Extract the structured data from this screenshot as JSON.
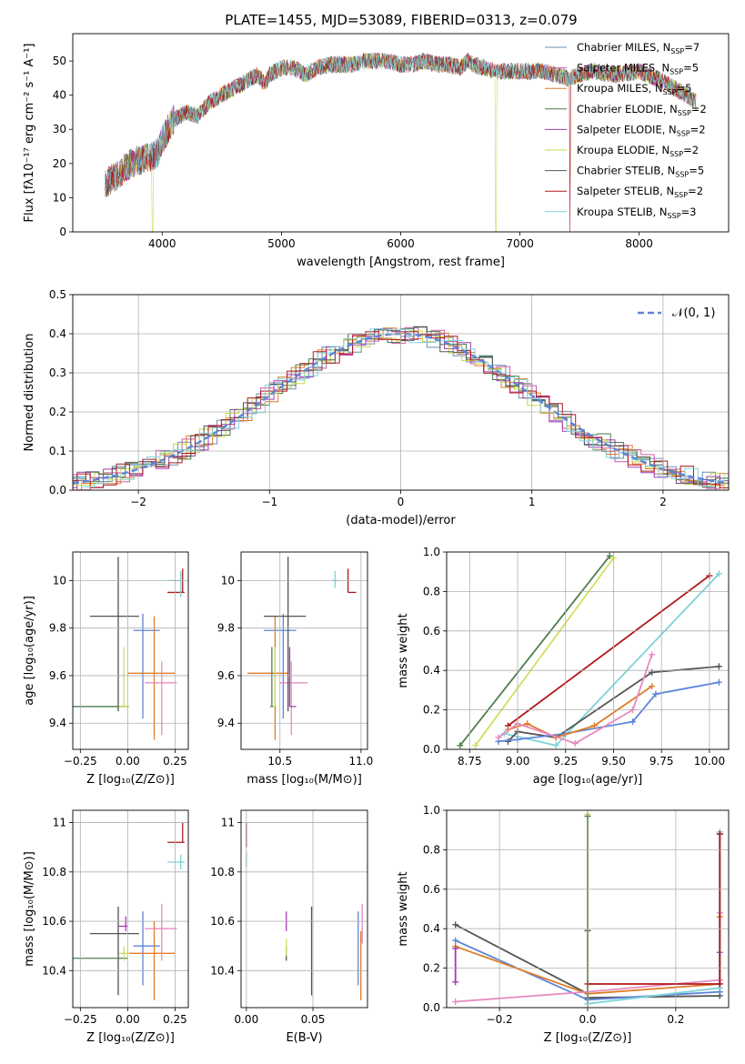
{
  "title": "PLATE=1455, MJD=53089, FIBERID=0313, z=0.079",
  "colors": {
    "chabrier_miles": "#6a8fb2",
    "salpeter_miles": "#d15aa8",
    "kroupa_miles": "#e07b28",
    "chabrier_elodie": "#4c7a4c",
    "salpeter_elodie": "#a23bb0",
    "kroupa_elodie": "#c8d84a",
    "chabrier_stelib": "#555555",
    "salpeter_stelib": "#b0181c",
    "kroupa_stelib": "#7fd3d9",
    "cb_blue": "#5b84d8",
    "cb_orange": "#e07b28",
    "cb_pink": "#e68bc0",
    "cb_green": "#4f7f4f",
    "cb_yellow": "#cfe060",
    "cb_gray": "#555555",
    "cb_red": "#b0181c",
    "cb_cyan": "#7fd3d9",
    "cb_purple": "#a23bb0",
    "normal_curve": "#5b84d8"
  },
  "chart_data": [
    {
      "id": "spectrum",
      "type": "line",
      "title": "PLATE=1455, MJD=53089, FIBERID=0313, z=0.079",
      "xlabel": "wavelength [Angstrom, rest frame]",
      "ylabel": "Flux [fλ10⁻¹⁷ erg cm⁻² s⁻¹ A⁻¹]",
      "xlim": [
        3250,
        8750
      ],
      "ylim": [
        0,
        58
      ],
      "xticks": [
        4000,
        5000,
        6000,
        7000,
        8000
      ],
      "yticks": [
        0,
        10,
        20,
        30,
        40,
        50
      ],
      "grid": false,
      "legend_position": "upper right",
      "spectrum_anchor": [
        [
          3520,
          14
        ],
        [
          3600,
          16
        ],
        [
          3700,
          19
        ],
        [
          3800,
          21
        ],
        [
          3900,
          22
        ],
        [
          3960,
          23
        ],
        [
          4000,
          27
        ],
        [
          4100,
          33
        ],
        [
          4200,
          35
        ],
        [
          4300,
          34
        ],
        [
          4400,
          38
        ],
        [
          4500,
          40
        ],
        [
          4600,
          42
        ],
        [
          4700,
          44
        ],
        [
          4800,
          46
        ],
        [
          4861,
          43
        ],
        [
          4900,
          46
        ],
        [
          5000,
          48
        ],
        [
          5100,
          48
        ],
        [
          5200,
          46
        ],
        [
          5300,
          48
        ],
        [
          5400,
          49
        ],
        [
          5500,
          49
        ],
        [
          5600,
          49
        ],
        [
          5700,
          50
        ],
        [
          5800,
          50
        ],
        [
          5900,
          50
        ],
        [
          6000,
          49
        ],
        [
          6100,
          49
        ],
        [
          6200,
          50
        ],
        [
          6300,
          49
        ],
        [
          6400,
          49
        ],
        [
          6500,
          48
        ],
        [
          6563,
          50
        ],
        [
          6600,
          49
        ],
        [
          6700,
          48
        ],
        [
          6800,
          47
        ],
        [
          6900,
          47
        ],
        [
          7000,
          47
        ],
        [
          7100,
          47
        ],
        [
          7200,
          47
        ],
        [
          7300,
          46
        ],
        [
          7400,
          45
        ],
        [
          7600,
          47
        ],
        [
          7800,
          46
        ],
        [
          8000,
          47
        ],
        [
          8200,
          44
        ],
        [
          8400,
          40
        ],
        [
          8480,
          38
        ]
      ],
      "series": [
        {
          "name": "Chabrier MILES, N",
          "sub": "SSP",
          "suffix": "=7",
          "color_key": "chabrier_miles"
        },
        {
          "name": "Salpeter MILES, N",
          "sub": "SSP",
          "suffix": "=5",
          "color_key": "salpeter_miles"
        },
        {
          "name": "Kroupa MILES, N",
          "sub": "SSP",
          "suffix": "=5",
          "color_key": "kroupa_miles"
        },
        {
          "name": "Chabrier ELODIE, N",
          "sub": "SSP",
          "suffix": "=2",
          "color_key": "chabrier_elodie"
        },
        {
          "name": "Salpeter ELODIE, N",
          "sub": "SSP",
          "suffix": "=2",
          "color_key": "salpeter_elodie"
        },
        {
          "name": "Kroupa ELODIE, N",
          "sub": "SSP",
          "suffix": "=2",
          "color_key": "kroupa_elodie"
        },
        {
          "name": "Chabrier STELIB, N",
          "sub": "SSP",
          "suffix": "=5",
          "color_key": "chabrier_stelib"
        },
        {
          "name": "Salpeter STELIB, N",
          "sub": "SSP",
          "suffix": "=2",
          "color_key": "salpeter_stelib"
        },
        {
          "name": "Kroupa STELIB, N",
          "sub": "SSP",
          "suffix": "=3",
          "color_key": "kroupa_stelib"
        }
      ]
    },
    {
      "id": "residuals",
      "type": "line",
      "xlabel": "(data-model)/error",
      "ylabel": "Normed distribution",
      "xlim": [
        -2.5,
        2.5
      ],
      "ylim": [
        0,
        0.5
      ],
      "xticks": [
        -2,
        -1,
        0,
        1,
        2
      ],
      "yticks": [
        0.0,
        0.1,
        0.2,
        0.3,
        0.4,
        0.5
      ],
      "grid": true,
      "legend_position": "upper right",
      "legend": "𝒩(0, 1)",
      "histogram": {
        "bin_width": 0.1,
        "amplitude": 0.4,
        "sigma": 1.0,
        "color_keys": [
          "chabrier_miles",
          "salpeter_miles",
          "kroupa_miles",
          "chabrier_elodie",
          "salpeter_elodie",
          "kroupa_elodie",
          "chabrier_stelib",
          "salpeter_stelib",
          "kroupa_stelib"
        ]
      }
    },
    {
      "id": "z_vs_age",
      "type": "scatter",
      "xlabel": "Z [log₁₀(Z/Z⊙)]",
      "ylabel": "age  [log₁₀(age/yr)]",
      "xlim": [
        -0.29,
        0.32
      ],
      "ylim": [
        9.29,
        10.12
      ],
      "xticks": [
        -0.25,
        0.0,
        0.25
      ],
      "xtick_labels": [
        "−0.25",
        "0.00",
        "0.25"
      ],
      "yticks": [
        9.4,
        9.6,
        9.8,
        10.0
      ],
      "grid": true,
      "errorbars": [
        {
          "cx": 0.08,
          "cy": 9.79,
          "x0": 0.03,
          "x1": 0.17,
          "y0": 9.42,
          "y1": 9.86,
          "color_key": "cb_blue"
        },
        {
          "cx": 0.14,
          "cy": 9.61,
          "x0": 0.0,
          "x1": 0.25,
          "y0": 9.33,
          "y1": 9.85,
          "color_key": "cb_orange"
        },
        {
          "cx": 0.18,
          "cy": 9.57,
          "x0": 0.09,
          "x1": 0.26,
          "y0": 9.35,
          "y1": 9.66,
          "color_key": "cb_pink"
        },
        {
          "cx": -0.08,
          "cy": 9.47,
          "x0": -0.29,
          "x1": 0.0,
          "y0": 9.47,
          "y1": 9.47,
          "color_key": "cb_green"
        },
        {
          "cx": -0.02,
          "cy": 9.47,
          "x0": -0.05,
          "x1": 0.01,
          "y0": 9.47,
          "y1": 9.72,
          "color_key": "cb_yellow"
        },
        {
          "cx": -0.05,
          "cy": 9.85,
          "x0": -0.2,
          "x1": 0.06,
          "y0": 9.45,
          "y1": 10.1,
          "color_key": "cb_gray"
        },
        {
          "cx": 0.29,
          "cy": 9.95,
          "x0": 0.21,
          "x1": 0.3,
          "y0": 9.95,
          "y1": 10.05,
          "color_key": "cb_red"
        },
        {
          "cx": 0.28,
          "cy": 10.0,
          "x0": 0.21,
          "x1": 0.3,
          "y0": 9.93,
          "y1": 10.04,
          "color_key": "cb_cyan"
        }
      ]
    },
    {
      "id": "mass_vs_age",
      "type": "scatter",
      "xlabel": "mass [log₁₀(M/M⊙)]",
      "xlim": [
        10.26,
        11.04
      ],
      "ylim": [
        9.29,
        10.12
      ],
      "xticks": [
        10.5,
        11.0
      ],
      "xtick_labels": [
        "10.5",
        "11.0"
      ],
      "yticks": [
        9.4,
        9.6,
        9.8,
        10.0
      ],
      "grid": true,
      "errorbars": [
        {
          "cx": 10.52,
          "cy": 9.79,
          "x0": 10.4,
          "x1": 10.6,
          "y0": 9.42,
          "y1": 9.86,
          "color_key": "cb_blue"
        },
        {
          "cx": 10.47,
          "cy": 9.61,
          "x0": 10.3,
          "x1": 10.55,
          "y0": 9.33,
          "y1": 9.85,
          "color_key": "cb_orange"
        },
        {
          "cx": 10.57,
          "cy": 9.57,
          "x0": 10.5,
          "x1": 10.67,
          "y0": 9.35,
          "y1": 9.66,
          "color_key": "cb_pink"
        },
        {
          "cx": 10.45,
          "cy": 9.47,
          "x0": 10.44,
          "x1": 10.46,
          "y0": 9.47,
          "y1": 9.72,
          "color_key": "cb_green"
        },
        {
          "cx": 10.47,
          "cy": 9.47,
          "x0": 10.46,
          "x1": 10.48,
          "y0": 9.47,
          "y1": 9.72,
          "color_key": "cb_yellow"
        },
        {
          "cx": 10.56,
          "cy": 9.47,
          "x0": 10.56,
          "x1": 10.6,
          "y0": 9.47,
          "y1": 9.72,
          "color_key": "cb_purple"
        },
        {
          "cx": 10.55,
          "cy": 9.85,
          "x0": 10.4,
          "x1": 10.66,
          "y0": 9.45,
          "y1": 10.1,
          "color_key": "cb_gray"
        },
        {
          "cx": 10.92,
          "cy": 9.95,
          "x0": 10.92,
          "x1": 10.97,
          "y0": 9.95,
          "y1": 10.05,
          "color_key": "cb_red"
        },
        {
          "cx": 10.84,
          "cy": 10.0,
          "x0": 10.82,
          "x1": 10.86,
          "y0": 9.97,
          "y1": 10.04,
          "color_key": "cb_cyan"
        }
      ]
    },
    {
      "id": "age_vs_weight",
      "type": "line",
      "xlabel": "age  [log₁₀(age/yr)]",
      "ylabel": "mass weight",
      "xlim": [
        8.63,
        10.1
      ],
      "ylim": [
        0,
        1.0
      ],
      "xticks": [
        8.75,
        9.0,
        9.25,
        9.5,
        9.75,
        10.0
      ],
      "xtick_labels": [
        "8.75",
        "9.00",
        "9.25",
        "9.50",
        "9.75",
        "10.00"
      ],
      "yticks": [
        0.0,
        0.2,
        0.4,
        0.6,
        0.8,
        1.0
      ],
      "grid": true,
      "series": [
        {
          "color_key": "cb_green",
          "x": [
            8.7,
            9.48
          ],
          "y": [
            0.02,
            0.98
          ]
        },
        {
          "color_key": "cb_yellow",
          "x": [
            8.78,
            9.5
          ],
          "y": [
            0.02,
            0.97
          ]
        },
        {
          "color_key": "cb_red",
          "x": [
            8.95,
            10.0
          ],
          "y": [
            0.12,
            0.88
          ]
        },
        {
          "color_key": "cb_cyan",
          "x": [
            8.93,
            9.2,
            10.05
          ],
          "y": [
            0.08,
            0.02,
            0.89
          ]
        },
        {
          "color_key": "cb_gray",
          "x": [
            8.95,
            9.0,
            9.2,
            9.7,
            10.05
          ],
          "y": [
            0.04,
            0.09,
            0.06,
            0.39,
            0.42
          ]
        },
        {
          "color_key": "cb_blue",
          "x": [
            8.9,
            9.0,
            9.25,
            9.6,
            9.72,
            10.05
          ],
          "y": [
            0.04,
            0.05,
            0.08,
            0.14,
            0.28,
            0.34
          ]
        },
        {
          "color_key": "cb_orange",
          "x": [
            8.95,
            9.05,
            9.2,
            9.4,
            9.7
          ],
          "y": [
            0.1,
            0.13,
            0.06,
            0.12,
            0.32
          ]
        },
        {
          "color_key": "cb_pink",
          "x": [
            8.9,
            9.0,
            9.3,
            9.6,
            9.7
          ],
          "y": [
            0.06,
            0.13,
            0.03,
            0.2,
            0.48
          ]
        }
      ]
    },
    {
      "id": "z_vs_mass",
      "type": "scatter",
      "xlabel": "Z [log₁₀(Z/Z⊙)]",
      "ylabel": "mass [log₁₀(M/M⊙)]",
      "xlim": [
        -0.29,
        0.32
      ],
      "ylim": [
        10.25,
        11.05
      ],
      "xticks": [
        -0.25,
        0.0,
        0.25
      ],
      "xtick_labels": [
        "−0.25",
        "0.00",
        "0.25"
      ],
      "yticks": [
        10.4,
        10.6,
        10.8,
        11.0
      ],
      "grid": true,
      "errorbars": [
        {
          "cx": 0.08,
          "cy": 10.5,
          "x0": 0.03,
          "x1": 0.17,
          "y0": 10.34,
          "y1": 10.64,
          "color_key": "cb_blue"
        },
        {
          "cx": 0.14,
          "cy": 10.47,
          "x0": 0.0,
          "x1": 0.25,
          "y0": 10.28,
          "y1": 10.6,
          "color_key": "cb_orange"
        },
        {
          "cx": 0.18,
          "cy": 10.57,
          "x0": 0.09,
          "x1": 0.26,
          "y0": 10.44,
          "y1": 10.67,
          "color_key": "cb_pink"
        },
        {
          "cx": -0.08,
          "cy": 10.45,
          "x0": -0.29,
          "x1": 0.0,
          "y0": 10.45,
          "y1": 10.45,
          "color_key": "cb_green"
        },
        {
          "cx": -0.02,
          "cy": 10.47,
          "x0": -0.05,
          "x1": 0.01,
          "y0": 10.44,
          "y1": 10.5,
          "color_key": "cb_yellow"
        },
        {
          "cx": -0.01,
          "cy": 10.58,
          "x0": -0.05,
          "x1": 0.0,
          "y0": 10.56,
          "y1": 10.62,
          "color_key": "cb_purple"
        },
        {
          "cx": -0.05,
          "cy": 10.55,
          "x0": -0.2,
          "x1": 0.06,
          "y0": 10.3,
          "y1": 10.66,
          "color_key": "cb_gray"
        },
        {
          "cx": 0.29,
          "cy": 10.92,
          "x0": 0.21,
          "x1": 0.3,
          "y0": 10.92,
          "y1": 11.0,
          "color_key": "cb_red"
        },
        {
          "cx": 0.28,
          "cy": 10.84,
          "x0": 0.21,
          "x1": 0.3,
          "y0": 10.81,
          "y1": 10.87,
          "color_key": "cb_cyan"
        }
      ]
    },
    {
      "id": "ebv_vs_mass",
      "type": "scatter",
      "xlabel": "E(B-V)",
      "xlim": [
        -0.004,
        0.091
      ],
      "ylim": [
        10.25,
        11.05
      ],
      "xticks": [
        0.0,
        0.05
      ],
      "xtick_labels": [
        "0.00",
        "0.05"
      ],
      "yticks": [
        10.4,
        10.6,
        10.8,
        11.0
      ],
      "grid": true,
      "errorbars": [
        {
          "cx": 0.0,
          "cy": 11.0,
          "x0": 0.0,
          "x1": 0.0,
          "y0": 10.9,
          "y1": 11.0,
          "color_key": "cb_red"
        },
        {
          "cx": 0.0,
          "cy": 10.86,
          "x0": 0.0,
          "x1": 0.0,
          "y0": 10.82,
          "y1": 10.88,
          "color_key": "cb_cyan"
        },
        {
          "cx": 0.03,
          "cy": 10.6,
          "x0": 0.03,
          "x1": 0.03,
          "y0": 10.56,
          "y1": 10.64,
          "color_key": "cb_purple"
        },
        {
          "cx": 0.03,
          "cy": 10.47,
          "x0": 0.03,
          "x1": 0.03,
          "y0": 10.44,
          "y1": 10.5,
          "color_key": "cb_gray"
        },
        {
          "cx": 0.03,
          "cy": 10.48,
          "x0": 0.03,
          "x1": 0.03,
          "y0": 10.46,
          "y1": 10.53,
          "color_key": "cb_yellow"
        },
        {
          "cx": 0.049,
          "cy": 10.48,
          "x0": 0.049,
          "x1": 0.049,
          "y0": 10.3,
          "y1": 10.66,
          "color_key": "cb_gray"
        },
        {
          "cx": 0.084,
          "cy": 10.5,
          "x0": 0.084,
          "x1": 0.084,
          "y0": 10.34,
          "y1": 10.64,
          "color_key": "cb_blue"
        },
        {
          "cx": 0.086,
          "cy": 10.43,
          "x0": 0.086,
          "x1": 0.086,
          "y0": 10.28,
          "y1": 10.56,
          "color_key": "cb_orange"
        },
        {
          "cx": 0.087,
          "cy": 10.58,
          "x0": 0.087,
          "x1": 0.087,
          "y0": 10.51,
          "y1": 10.67,
          "color_key": "cb_pink"
        }
      ]
    },
    {
      "id": "z_vs_weight",
      "type": "line",
      "xlabel": "Z [log₁₀(Z/Z⊙)]",
      "ylabel": "mass weight",
      "xlim": [
        -0.32,
        0.32
      ],
      "ylim": [
        0,
        1.0
      ],
      "xticks": [
        -0.2,
        0.0,
        0.2
      ],
      "xtick_labels": [
        "−0.2",
        "0.0",
        "0.2"
      ],
      "yticks": [
        0.0,
        0.2,
        0.4,
        0.6,
        0.8,
        1.0
      ],
      "grid": true,
      "series": [
        {
          "color_key": "cb_gray",
          "x": [
            -0.3,
            0.0,
            0.0,
            0.0,
            0.3,
            0.3
          ],
          "y": [
            0.42,
            0.07,
            0.39,
            0.05,
            0.06,
            0.88
          ]
        },
        {
          "color_key": "cb_blue",
          "x": [
            -0.3,
            0.0,
            0.3,
            0.3
          ],
          "y": [
            0.34,
            0.04,
            0.08,
            0.28
          ]
        },
        {
          "color_key": "cb_orange",
          "x": [
            -0.3,
            0.0,
            0.3,
            0.3
          ],
          "y": [
            0.31,
            0.07,
            0.12,
            0.46
          ]
        },
        {
          "color_key": "cb_pink",
          "x": [
            -0.3,
            0.0,
            0.3,
            0.3
          ],
          "y": [
            0.03,
            0.08,
            0.14,
            0.48
          ]
        },
        {
          "color_key": "cb_yellow",
          "x": [
            0.0,
            0.0
          ],
          "y": [
            0.02,
            0.98
          ]
        },
        {
          "color_key": "cb_green",
          "x": [
            0.0,
            0.0
          ],
          "y": [
            0.02,
            0.97
          ]
        },
        {
          "color_key": "cb_cyan",
          "x": [
            0.0,
            0.3,
            0.3
          ],
          "y": [
            0.02,
            0.1,
            0.89
          ]
        },
        {
          "color_key": "cb_red",
          "x": [
            0.0,
            0.3,
            0.3
          ],
          "y": [
            0.12,
            0.12,
            0.88
          ]
        },
        {
          "color_key": "cb_purple",
          "x": [
            -0.3,
            -0.3
          ],
          "y": [
            0.13,
            0.3
          ]
        }
      ]
    }
  ]
}
